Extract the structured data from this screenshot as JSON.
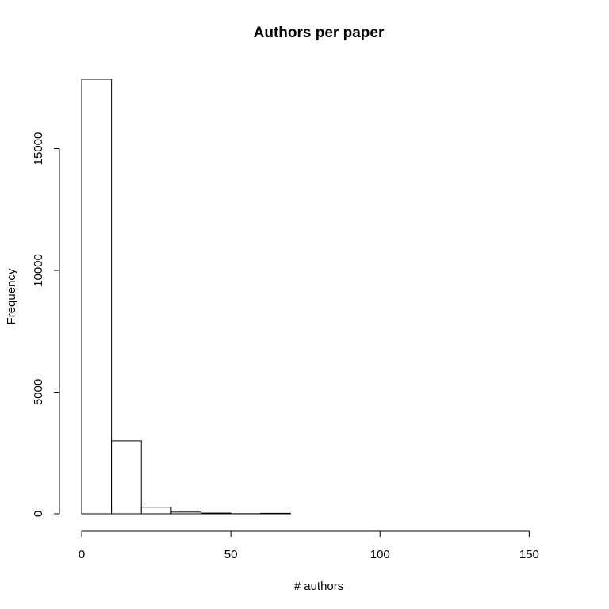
{
  "chart_data": {
    "type": "bar",
    "title": "Authors per paper",
    "xlabel": "# authors",
    "ylabel": "Frequency",
    "bin_width": 10,
    "bins": [
      {
        "x0": 0,
        "x1": 10,
        "value": 17850
      },
      {
        "x0": 10,
        "x1": 20,
        "value": 3000
      },
      {
        "x0": 20,
        "x1": 30,
        "value": 270
      },
      {
        "x0": 30,
        "x1": 40,
        "value": 70
      },
      {
        "x0": 40,
        "x1": 50,
        "value": 30
      },
      {
        "x0": 50,
        "x1": 60,
        "value": 5
      },
      {
        "x0": 60,
        "x1": 70,
        "value": 20
      },
      {
        "x0": 70,
        "x1": 80,
        "value": 0
      },
      {
        "x0": 80,
        "x1": 90,
        "value": 0
      },
      {
        "x0": 90,
        "x1": 100,
        "value": 0
      },
      {
        "x0": 100,
        "x1": 110,
        "value": 0
      },
      {
        "x0": 110,
        "x1": 120,
        "value": 0
      },
      {
        "x0": 120,
        "x1": 130,
        "value": 0
      },
      {
        "x0": 130,
        "x1": 140,
        "value": 0
      },
      {
        "x0": 140,
        "x1": 150,
        "value": 0
      },
      {
        "x0": 150,
        "x1": 160,
        "value": 0
      }
    ],
    "xlim": [
      0,
      160
    ],
    "ylim": [
      0,
      17850
    ],
    "x_ticks": [
      0,
      50,
      100,
      150
    ],
    "y_ticks": [
      0,
      5000,
      10000,
      15000
    ],
    "grid": false,
    "legend": "none"
  }
}
